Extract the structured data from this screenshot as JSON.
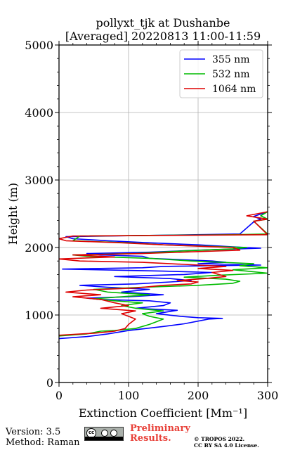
{
  "chart_data": {
    "type": "line",
    "title": "pollyxt_tjk at Dushanbe",
    "subtitle": "[Averaged] 20220813 11:00-11:59",
    "xlabel": "Extinction Coefficient [Mm⁻¹]",
    "ylabel": "Height (m)",
    "xlim": [
      0,
      300
    ],
    "ylim": [
      0,
      5000
    ],
    "xticks": [
      "0",
      "100",
      "200",
      "300"
    ],
    "yticks": [
      "0",
      "1000",
      "2000",
      "3000",
      "4000",
      "5000"
    ],
    "grid": true,
    "legend_position": "top-right",
    "series": [
      {
        "name": "355 nm",
        "color": "#0000ff",
        "points": [
          [
            0,
            650
          ],
          [
            40,
            680
          ],
          [
            70,
            720
          ],
          [
            100,
            770
          ],
          [
            125,
            800
          ],
          [
            150,
            830
          ],
          [
            180,
            870
          ],
          [
            215,
            940
          ],
          [
            235,
            950
          ],
          [
            200,
            960
          ],
          [
            175,
            980
          ],
          [
            140,
            1020
          ],
          [
            170,
            1070
          ],
          [
            110,
            1100
          ],
          [
            150,
            1140
          ],
          [
            160,
            1180
          ],
          [
            130,
            1210
          ],
          [
            60,
            1230
          ],
          [
            40,
            1250
          ],
          [
            100,
            1270
          ],
          [
            150,
            1300
          ],
          [
            90,
            1340
          ],
          [
            130,
            1380
          ],
          [
            70,
            1410
          ],
          [
            30,
            1440
          ],
          [
            110,
            1460
          ],
          [
            160,
            1490
          ],
          [
            190,
            1510
          ],
          [
            160,
            1540
          ],
          [
            80,
            1570
          ],
          [
            180,
            1600
          ],
          [
            220,
            1630
          ],
          [
            150,
            1650
          ],
          [
            5,
            1680
          ],
          [
            120,
            1700
          ],
          [
            150,
            1720
          ],
          [
            290,
            1740
          ],
          [
            200,
            1760
          ],
          [
            240,
            1780
          ],
          [
            220,
            1800
          ],
          [
            130,
            1840
          ],
          [
            120,
            1870
          ],
          [
            60,
            1890
          ],
          [
            40,
            1910
          ],
          [
            130,
            1930
          ],
          [
            200,
            1960
          ],
          [
            290,
            1990
          ],
          [
            250,
            2010
          ],
          [
            200,
            2040
          ],
          [
            130,
            2070
          ],
          [
            70,
            2100
          ],
          [
            20,
            2130
          ],
          [
            10,
            2160
          ],
          [
            260,
            2200
          ],
          [
            280,
            2380
          ],
          [
            290,
            2420
          ],
          [
            280,
            2460
          ],
          [
            300,
            2530
          ]
        ]
      },
      {
        "name": "532 nm",
        "color": "#00bb00",
        "points": [
          [
            0,
            690
          ],
          [
            40,
            720
          ],
          [
            60,
            760
          ],
          [
            80,
            770
          ],
          [
            110,
            800
          ],
          [
            130,
            860
          ],
          [
            140,
            900
          ],
          [
            150,
            940
          ],
          [
            130,
            980
          ],
          [
            120,
            1020
          ],
          [
            150,
            1060
          ],
          [
            110,
            1100
          ],
          [
            90,
            1140
          ],
          [
            120,
            1180
          ],
          [
            80,
            1210
          ],
          [
            50,
            1240
          ],
          [
            90,
            1270
          ],
          [
            130,
            1300
          ],
          [
            70,
            1340
          ],
          [
            50,
            1380
          ],
          [
            120,
            1410
          ],
          [
            200,
            1440
          ],
          [
            250,
            1470
          ],
          [
            260,
            1500
          ],
          [
            240,
            1530
          ],
          [
            180,
            1560
          ],
          [
            230,
            1590
          ],
          [
            300,
            1620
          ],
          [
            270,
            1650
          ],
          [
            250,
            1670
          ],
          [
            300,
            1700
          ],
          [
            260,
            1730
          ],
          [
            280,
            1760
          ],
          [
            190,
            1800
          ],
          [
            130,
            1840
          ],
          [
            40,
            1870
          ],
          [
            20,
            1890
          ],
          [
            110,
            1910
          ],
          [
            180,
            1950
          ],
          [
            250,
            1980
          ],
          [
            270,
            2000
          ],
          [
            150,
            2040
          ],
          [
            100,
            2070
          ],
          [
            20,
            2100
          ],
          [
            30,
            2170
          ],
          [
            250,
            2190
          ],
          [
            300,
            2200
          ],
          [
            280,
            2390
          ],
          [
            300,
            2420
          ],
          [
            290,
            2470
          ],
          [
            300,
            2530
          ]
        ]
      },
      {
        "name": "1064 nm",
        "color": "#dd0000",
        "points": [
          [
            0,
            700
          ],
          [
            50,
            730
          ],
          [
            80,
            760
          ],
          [
            95,
            800
          ],
          [
            100,
            860
          ],
          [
            105,
            900
          ],
          [
            110,
            940
          ],
          [
            100,
            980
          ],
          [
            90,
            1020
          ],
          [
            110,
            1060
          ],
          [
            60,
            1100
          ],
          [
            100,
            1140
          ],
          [
            80,
            1180
          ],
          [
            60,
            1230
          ],
          [
            20,
            1270
          ],
          [
            60,
            1300
          ],
          [
            10,
            1340
          ],
          [
            40,
            1370
          ],
          [
            110,
            1400
          ],
          [
            150,
            1440
          ],
          [
            190,
            1460
          ],
          [
            200,
            1490
          ],
          [
            170,
            1510
          ],
          [
            210,
            1540
          ],
          [
            240,
            1570
          ],
          [
            230,
            1600
          ],
          [
            220,
            1630
          ],
          [
            250,
            1660
          ],
          [
            200,
            1690
          ],
          [
            240,
            1720
          ],
          [
            180,
            1750
          ],
          [
            120,
            1780
          ],
          [
            30,
            1800
          ],
          [
            0,
            1830
          ],
          [
            80,
            1860
          ],
          [
            20,
            1890
          ],
          [
            120,
            1910
          ],
          [
            200,
            1940
          ],
          [
            260,
            1960
          ],
          [
            250,
            2000
          ],
          [
            150,
            2040
          ],
          [
            90,
            2070
          ],
          [
            10,
            2100
          ],
          [
            0,
            2130
          ],
          [
            20,
            2170
          ],
          [
            300,
            2190
          ],
          [
            280,
            2390
          ],
          [
            300,
            2420
          ],
          [
            270,
            2470
          ],
          [
            300,
            2530
          ]
        ]
      }
    ]
  },
  "footer": {
    "version": "Version: 3.5",
    "method": "Method: Raman",
    "preliminary_line1": "Preliminary",
    "preliminary_line2": "Results.",
    "copyright_line1": "© TROPOS 2022.",
    "copyright_line2": "CC BY SA 4.0 License.",
    "cc_badge": "cc"
  }
}
